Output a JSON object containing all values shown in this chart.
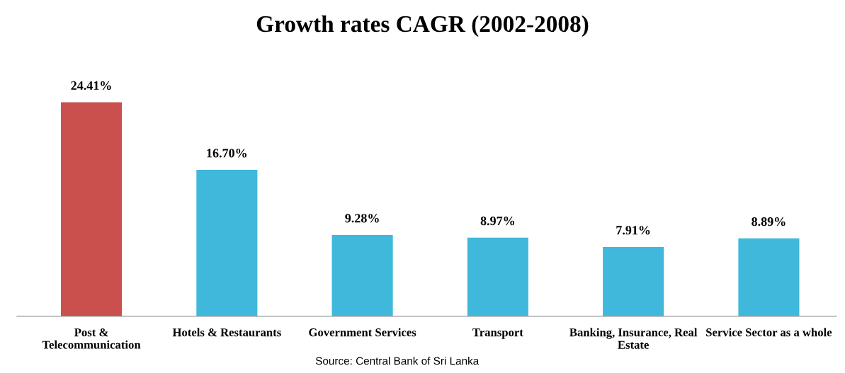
{
  "chart_data": {
    "type": "bar",
    "title": "Growth rates CAGR (2002-2008)",
    "categories": [
      "Post &\nTelecommunication",
      "Hotels & Restaurants",
      "Government Services",
      "Transport",
      "Banking, Insurance, Real\nEstate",
      "Service Sector as a whole"
    ],
    "values": [
      24.41,
      16.7,
      9.28,
      8.97,
      7.91,
      8.89
    ],
    "colors": [
      "#c9504d",
      "#3fb8db",
      "#3fb8db",
      "#3fb8db",
      "#3fb8db",
      "#3fb8db"
    ],
    "value_labels": [
      "24.41%",
      "16.70%",
      "9.28%",
      "8.97%",
      "7.91%",
      "8.89%"
    ],
    "annotations": [
      "Source: Central Bank of Sri Lanka"
    ],
    "grid": false,
    "legend": false
  }
}
